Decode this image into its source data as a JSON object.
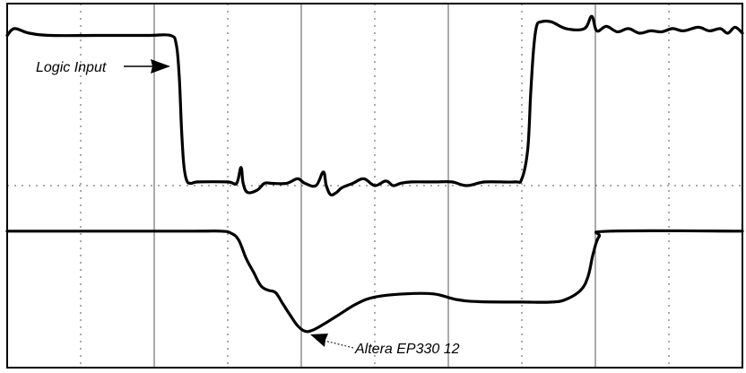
{
  "chart_data": {
    "type": "line",
    "title": "",
    "xlabel": "",
    "ylabel": "",
    "grid": true,
    "xlim": [
      0,
      10
    ],
    "ylim": [
      0,
      8
    ],
    "annotations": [
      {
        "name": "logic-input-label",
        "text": "Logic Input",
        "series": "upper"
      },
      {
        "name": "altera-label",
        "text": "Altera EP330 12",
        "series": "lower"
      }
    ],
    "series": [
      {
        "name": "",
        "key": "upper",
        "values": [
          [
            0.0,
            7.3
          ],
          [
            0.1,
            7.45
          ],
          [
            0.3,
            7.35
          ],
          [
            0.6,
            7.3
          ],
          [
            1.2,
            7.3
          ],
          [
            1.9,
            7.3
          ],
          [
            2.22,
            7.3
          ],
          [
            2.3,
            7.1
          ],
          [
            2.34,
            6.4
          ],
          [
            2.37,
            5.3
          ],
          [
            2.4,
            4.5
          ],
          [
            2.44,
            4.12
          ],
          [
            2.5,
            4.05
          ],
          [
            2.6,
            4.08
          ],
          [
            3.0,
            4.08
          ],
          [
            3.12,
            4.05
          ],
          [
            3.18,
            4.4
          ],
          [
            3.21,
            4.05
          ],
          [
            3.27,
            3.85
          ],
          [
            3.4,
            3.9
          ],
          [
            3.5,
            4.05
          ],
          [
            3.6,
            4.05
          ],
          [
            3.8,
            4.05
          ],
          [
            3.95,
            4.15
          ],
          [
            4.05,
            4.05
          ],
          [
            4.2,
            4.0
          ],
          [
            4.3,
            4.3
          ],
          [
            4.34,
            4.0
          ],
          [
            4.4,
            3.8
          ],
          [
            4.48,
            3.85
          ],
          [
            4.55,
            3.95
          ],
          [
            4.7,
            4.05
          ],
          [
            4.85,
            4.15
          ],
          [
            5.0,
            4.0
          ],
          [
            5.15,
            4.1
          ],
          [
            5.25,
            4.0
          ],
          [
            5.35,
            4.05
          ],
          [
            5.5,
            4.08
          ],
          [
            5.8,
            4.08
          ],
          [
            6.05,
            4.08
          ],
          [
            6.25,
            4.0
          ],
          [
            6.5,
            4.08
          ],
          [
            6.9,
            4.08
          ],
          [
            7.0,
            4.15
          ],
          [
            7.08,
            4.8
          ],
          [
            7.12,
            6.0
          ],
          [
            7.16,
            7.0
          ],
          [
            7.2,
            7.5
          ],
          [
            7.26,
            7.6
          ],
          [
            7.4,
            7.6
          ],
          [
            7.6,
            7.45
          ],
          [
            7.85,
            7.45
          ],
          [
            7.95,
            7.72
          ],
          [
            8.02,
            7.4
          ],
          [
            8.15,
            7.5
          ],
          [
            8.3,
            7.38
          ],
          [
            8.45,
            7.45
          ],
          [
            8.6,
            7.35
          ],
          [
            8.75,
            7.4
          ],
          [
            8.9,
            7.38
          ],
          [
            9.05,
            7.45
          ],
          [
            9.2,
            7.4
          ],
          [
            9.4,
            7.48
          ],
          [
            9.55,
            7.4
          ],
          [
            9.7,
            7.45
          ],
          [
            9.8,
            7.35
          ],
          [
            9.9,
            7.48
          ],
          [
            10.0,
            7.35
          ]
        ]
      },
      {
        "name": "",
        "key": "lower",
        "values": [
          [
            0.0,
            3.0
          ],
          [
            2.4,
            3.0
          ],
          [
            2.9,
            3.0
          ],
          [
            3.05,
            2.95
          ],
          [
            3.15,
            2.8
          ],
          [
            3.25,
            2.4
          ],
          [
            3.35,
            2.1
          ],
          [
            3.45,
            1.8
          ],
          [
            3.55,
            1.7
          ],
          [
            3.65,
            1.65
          ],
          [
            3.75,
            1.4
          ],
          [
            3.85,
            1.15
          ],
          [
            3.95,
            0.92
          ],
          [
            4.05,
            0.8
          ],
          [
            4.15,
            0.82
          ],
          [
            4.3,
            0.95
          ],
          [
            4.5,
            1.15
          ],
          [
            4.75,
            1.4
          ],
          [
            5.0,
            1.55
          ],
          [
            5.4,
            1.62
          ],
          [
            5.8,
            1.62
          ],
          [
            6.1,
            1.5
          ],
          [
            6.4,
            1.45
          ],
          [
            7.0,
            1.44
          ],
          [
            7.4,
            1.44
          ],
          [
            7.6,
            1.5
          ],
          [
            7.8,
            1.7
          ],
          [
            7.9,
            2.0
          ],
          [
            7.97,
            2.5
          ],
          [
            8.05,
            2.88
          ],
          [
            8.2,
            3.0
          ],
          [
            10.0,
            3.0
          ]
        ]
      }
    ]
  }
}
